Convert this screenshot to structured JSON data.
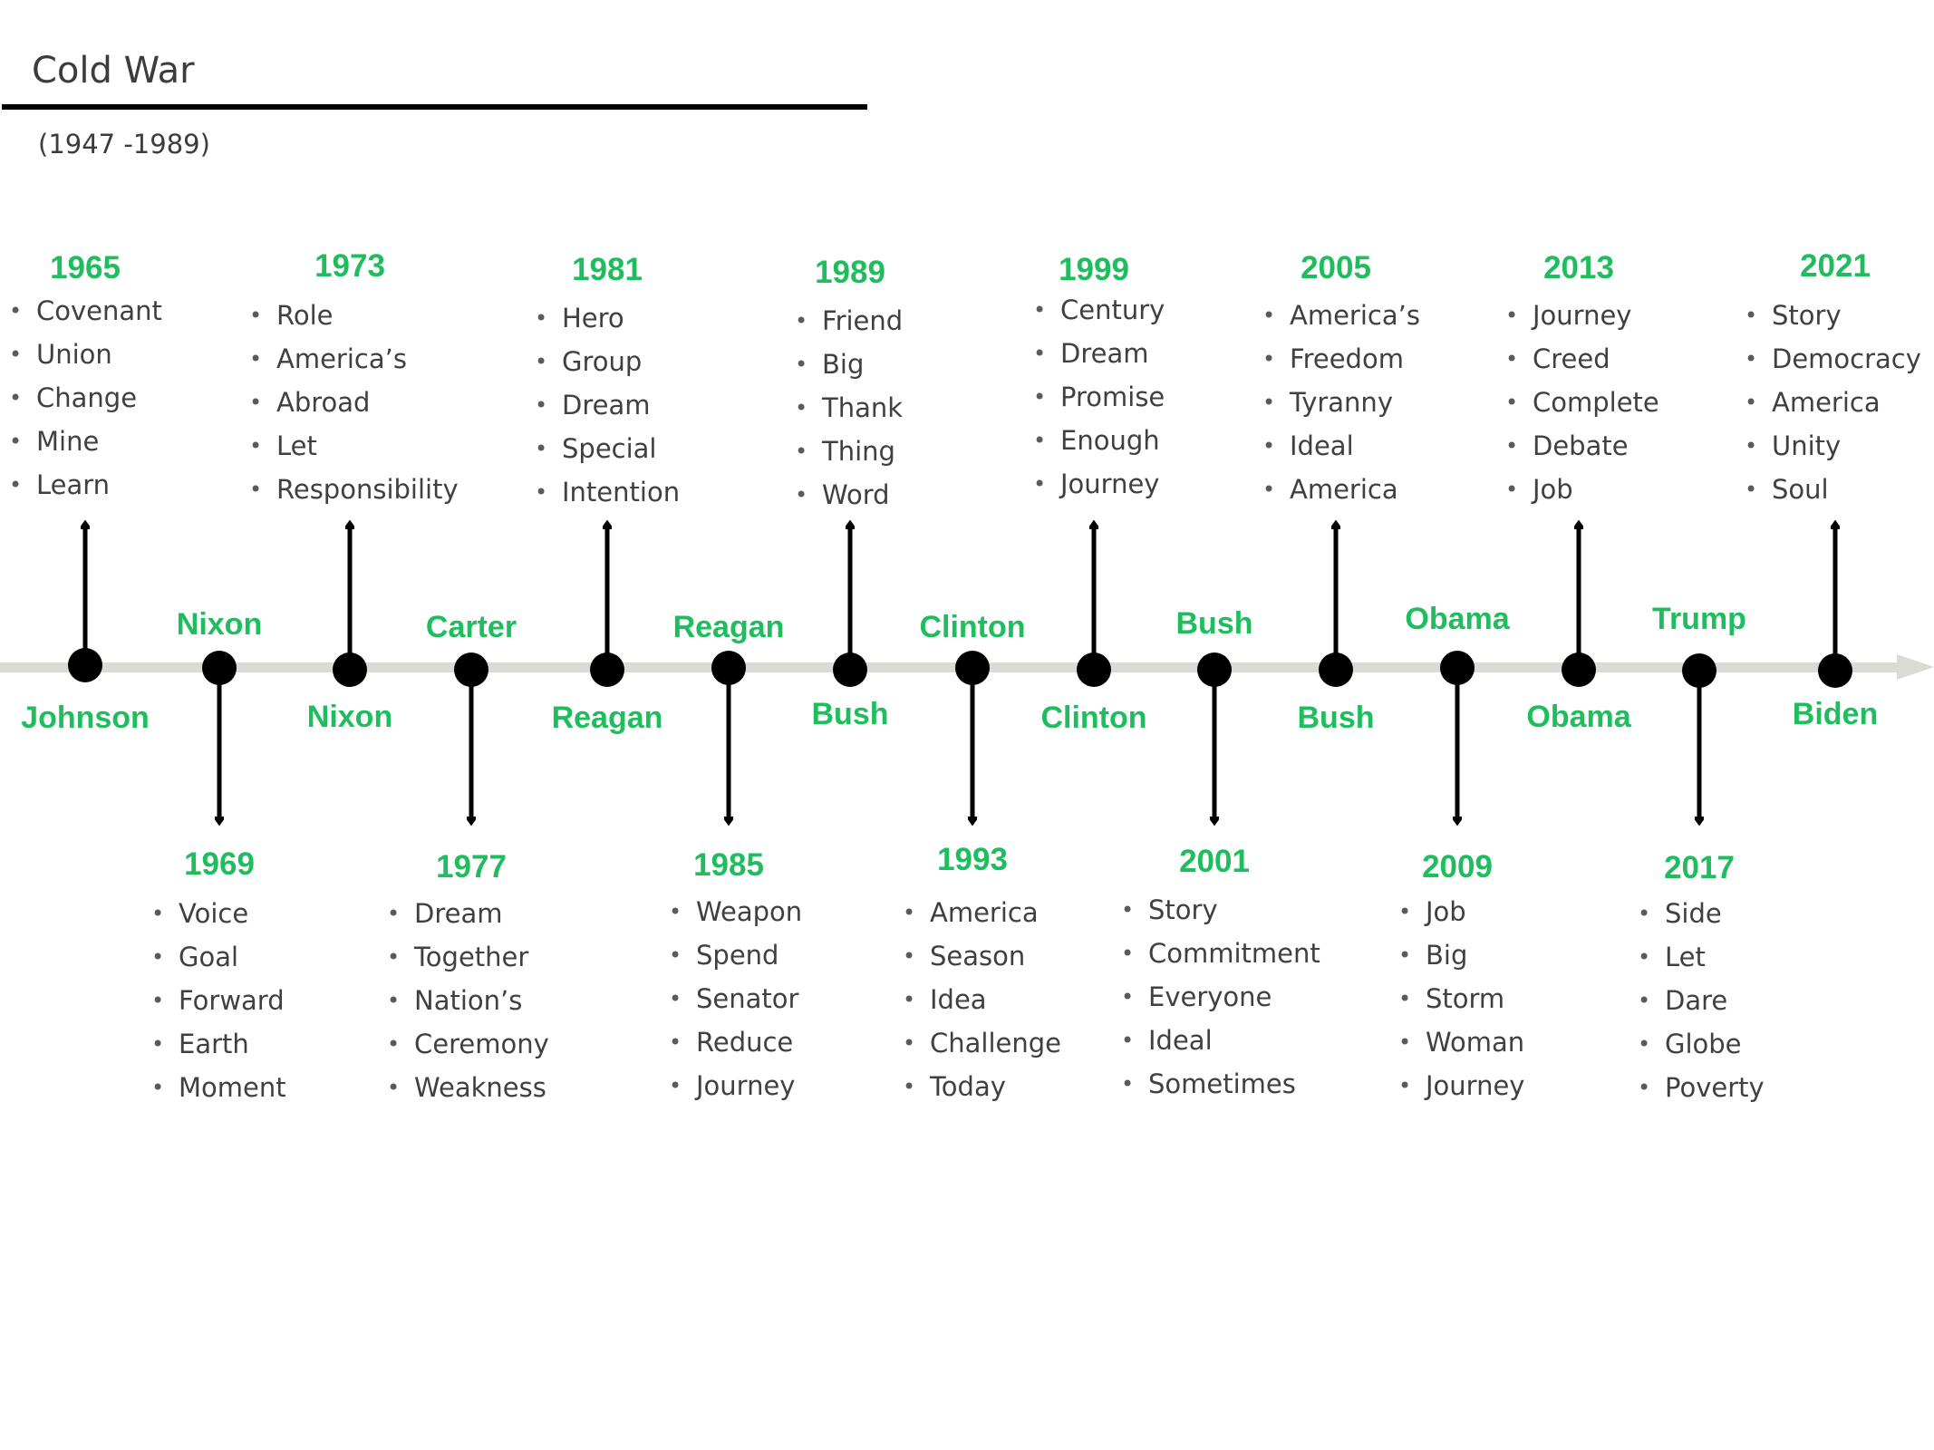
{
  "title": "Cold War",
  "subtitle": "(1947 -1989)",
  "colors": {
    "accent": "#1fbd5e",
    "axis": "#dcdad4",
    "marker": "#000000",
    "text": "#404040"
  },
  "events": [
    {
      "president": "Johnson",
      "year": "1965",
      "words": [
        "Covenant",
        "Union",
        "Change",
        "Mine",
        "Learn"
      ]
    },
    {
      "president": "Nixon",
      "year": "1969",
      "words": [
        "Voice",
        "Goal",
        "Forward",
        "Earth",
        "Moment"
      ]
    },
    {
      "president": "Nixon",
      "year": "1973",
      "words": [
        "Role",
        "America’s",
        "Abroad",
        "Let",
        "Responsibility"
      ]
    },
    {
      "president": "Carter",
      "year": "1977",
      "words": [
        "Dream",
        "Together",
        "Nation’s",
        "Ceremony",
        "Weakness"
      ]
    },
    {
      "president": "Reagan",
      "year": "1981",
      "words": [
        "Hero",
        "Group",
        "Dream",
        "Special",
        "Intention"
      ]
    },
    {
      "president": "Reagan",
      "year": "1985",
      "words": [
        "Weapon",
        "Spend",
        "Senator",
        "Reduce",
        "Journey"
      ]
    },
    {
      "president": "Bush",
      "year": "1989",
      "words": [
        "Friend",
        "Big",
        "Thank",
        "Thing",
        "Word"
      ]
    },
    {
      "president": "Clinton",
      "year": "1993",
      "words": [
        "America",
        "Season",
        "Idea",
        "Challenge",
        "Today"
      ]
    },
    {
      "president": "Clinton",
      "year": "1999",
      "words": [
        "Century",
        "Dream",
        "Promise",
        "Enough",
        "Journey"
      ]
    },
    {
      "president": "Bush",
      "year": "2001",
      "words": [
        "Story",
        "Commitment",
        "Everyone",
        "Ideal",
        "Sometimes"
      ]
    },
    {
      "president": "Bush",
      "year": "2005",
      "words": [
        "America’s",
        "Freedom",
        "Tyranny",
        "Ideal",
        "America"
      ]
    },
    {
      "president": "Obama",
      "year": "2009",
      "words": [
        "Job",
        "Big",
        "Storm",
        "Woman",
        "Journey"
      ]
    },
    {
      "president": "Obama",
      "year": "2013",
      "words": [
        "Journey",
        "Creed",
        "Complete",
        "Debate",
        "Job"
      ]
    },
    {
      "president": "Trump",
      "year": "2017",
      "words": [
        "Side",
        "Let",
        "Dare",
        "Globe",
        "Poverty"
      ]
    },
    {
      "president": "Biden",
      "year": "2021",
      "words": [
        "Story",
        "Democracy",
        "America",
        "Unity",
        "Soul"
      ]
    }
  ]
}
